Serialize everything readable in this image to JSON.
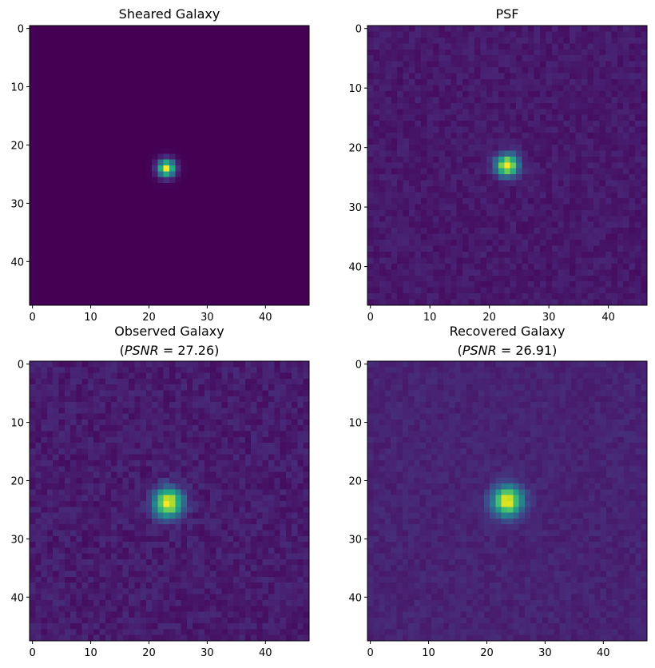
{
  "figure": {
    "background": "#ffffff",
    "colormap": "viridis"
  },
  "chart_data": [
    {
      "type": "heatmap",
      "title": "Sheared Galaxy",
      "subtitle": null,
      "grid": false,
      "shape": [
        48,
        48
      ],
      "xlim": [
        0,
        47
      ],
      "ylim": [
        47,
        0
      ],
      "xticks": [
        0,
        10,
        20,
        30,
        40
      ],
      "yticks": [
        0,
        10,
        20,
        30,
        40
      ],
      "source": {
        "center": [
          23,
          24
        ],
        "sigma": 1.0,
        "peak": 1.0,
        "background": 0.0,
        "noise": 0.0
      }
    },
    {
      "type": "heatmap",
      "title": "PSF",
      "subtitle": null,
      "grid": false,
      "shape": [
        47,
        47
      ],
      "xlim": [
        0,
        46
      ],
      "ylim": [
        46,
        0
      ],
      "xticks": [
        0,
        10,
        20,
        30,
        40
      ],
      "yticks": [
        0,
        10,
        20,
        30,
        40
      ],
      "source": {
        "center": [
          23,
          23
        ],
        "sigma": 1.3,
        "peak": 1.0,
        "background": 0.07,
        "noise": 0.035
      }
    },
    {
      "type": "heatmap",
      "title": "Observed Galaxy",
      "subtitle": {
        "prefix": "(",
        "metric": "PSNR",
        "equals": " = ",
        "value": "27.26",
        "suffix": ")"
      },
      "grid": false,
      "shape": [
        48,
        48
      ],
      "xlim": [
        0,
        47
      ],
      "ylim": [
        47,
        0
      ],
      "xticks": [
        0,
        10,
        20,
        30,
        40
      ],
      "yticks": [
        0,
        10,
        20,
        30,
        40
      ],
      "source": {
        "center": [
          23.3,
          23.8
        ],
        "sigma": 1.7,
        "peak": 1.0,
        "background": 0.08,
        "noise": 0.045
      }
    },
    {
      "type": "heatmap",
      "title": "Recovered Galaxy",
      "subtitle": {
        "prefix": "(",
        "metric": "PSNR",
        "equals": " = ",
        "value": "26.91",
        "suffix": ")"
      },
      "grid": false,
      "shape": [
        48,
        48
      ],
      "xlim": [
        0,
        47
      ],
      "ylim": [
        47,
        0
      ],
      "xticks": [
        0,
        10,
        20,
        30,
        40
      ],
      "yticks": [
        0,
        10,
        20,
        30,
        40
      ],
      "source": {
        "center": [
          23.5,
          23.5
        ],
        "sigma": 1.75,
        "peak": 1.0,
        "background": 0.1,
        "noise": 0.03
      }
    }
  ]
}
